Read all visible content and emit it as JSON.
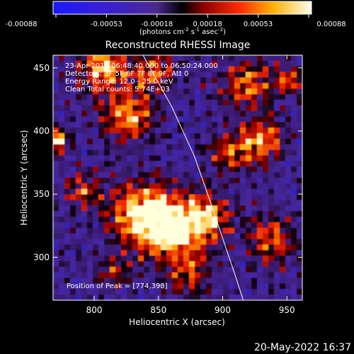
{
  "colorbar": {
    "ticks": [
      "-0.00088",
      "-0.00053",
      "-0.00018",
      "0.00018",
      "0.00053",
      "0.00088"
    ],
    "units_prefix": "(photons cm",
    "units_sup1": "-2",
    "units_mid1": " s",
    "units_sup2": "-1",
    "units_mid2": " asec",
    "units_sup3": "-2",
    "units_suffix": ")"
  },
  "image": {
    "title": "Reconstructed RHESSI Image",
    "annotations": [
      "23-Apr-2015 06:48:40.000 to 06:50:24.000",
      "Detectors: 3F 5F 6F 7F 8F 9F, Att 0",
      "Energy Range: 12.0 - 25.0 keV",
      "Clean    Total counts: 5.74E+03"
    ],
    "peak_label": "Position of Peak = [774,398]",
    "xlabel": "Heliocentric X (arcsec)",
    "ylabel": "Heliocentric Y (arcsec)",
    "xticks": [
      800,
      850,
      900,
      950
    ],
    "yticks": [
      300,
      350,
      400,
      450
    ],
    "xrange": [
      768,
      962
    ],
    "yrange": [
      266,
      460
    ],
    "limb_points": [
      [
        838,
        460
      ],
      [
        860,
        420
      ],
      [
        878,
        380
      ],
      [
        890,
        345
      ],
      [
        900,
        315
      ],
      [
        910,
        285
      ],
      [
        916,
        266
      ]
    ]
  },
  "footer": {
    "date": "20-May-2022 16:37"
  }
}
